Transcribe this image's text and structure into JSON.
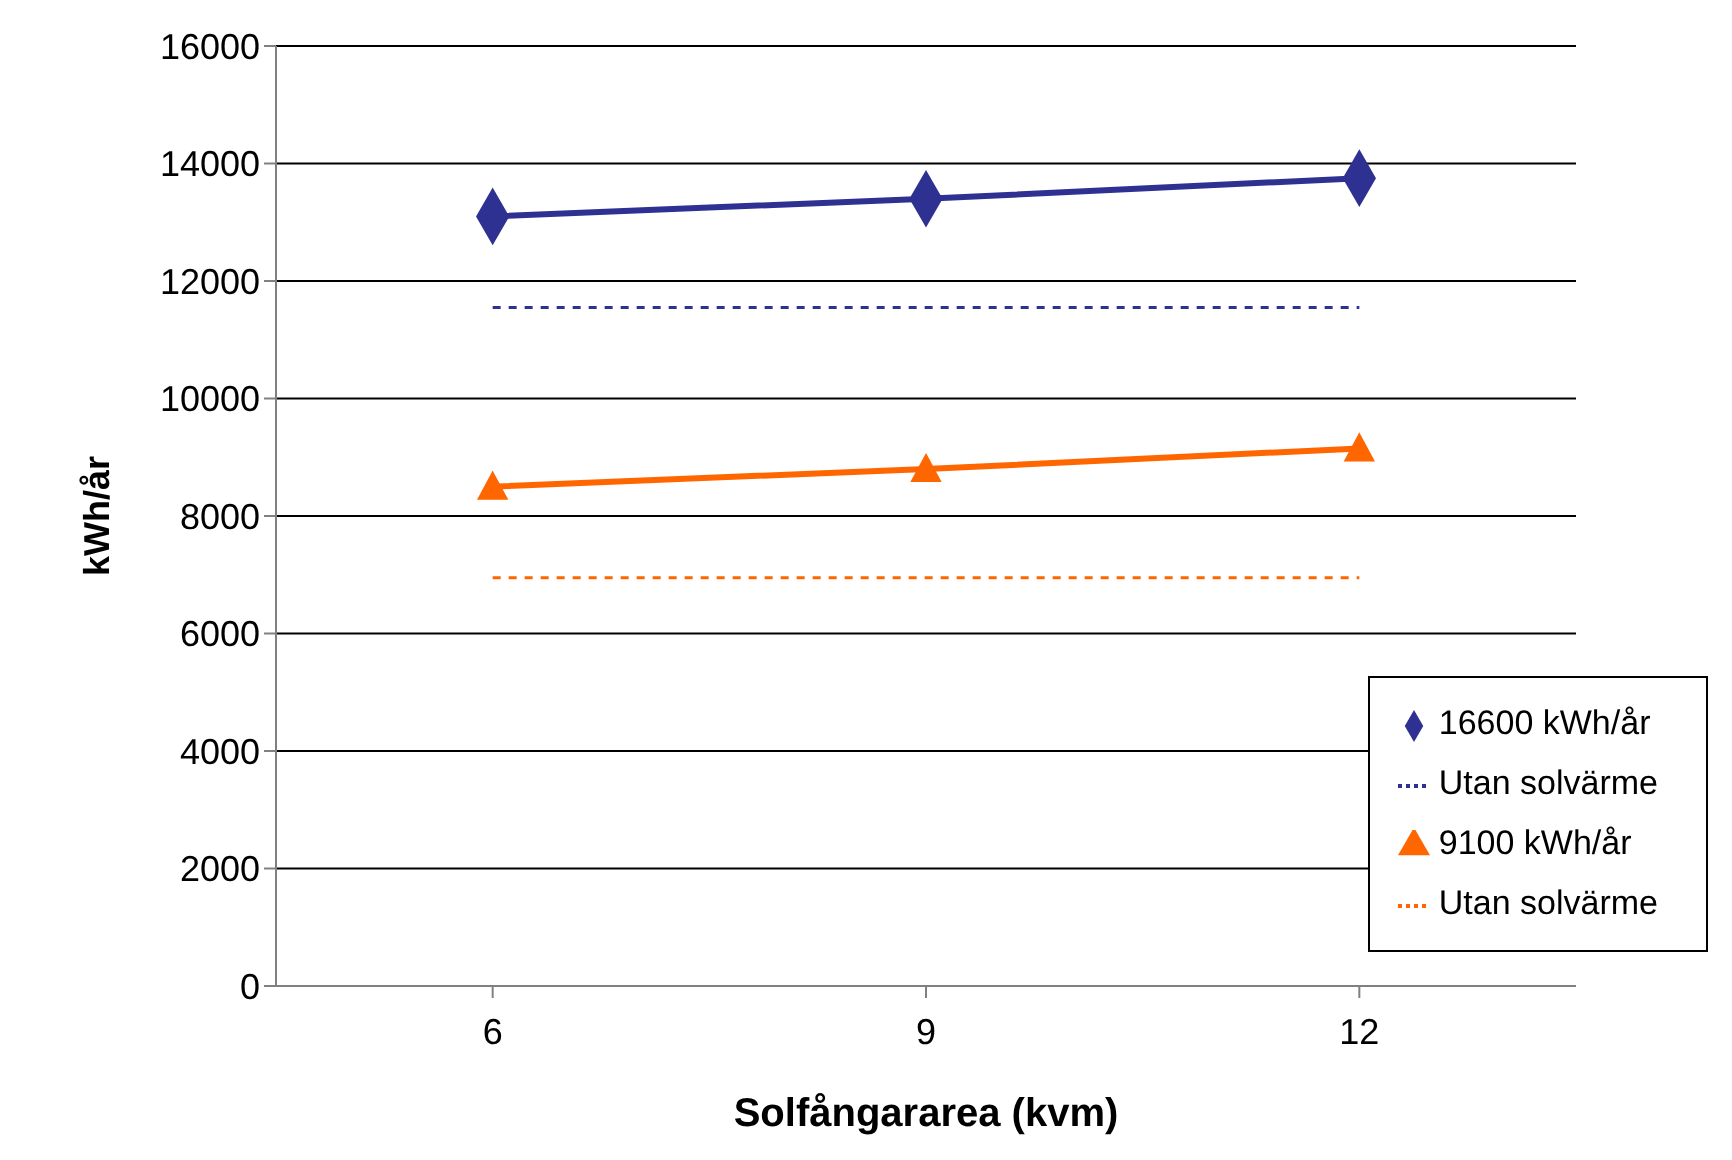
{
  "chart_data": {
    "type": "line",
    "xlabel": "Solfångararea (kvm)",
    "ylabel": "kWh/år",
    "categories": [
      "6",
      "9",
      "12"
    ],
    "series": [
      {
        "name": "16600 kWh/år",
        "color": "#2e3192",
        "values": [
          13100,
          13400,
          13750
        ],
        "marker": "diamond",
        "line_style": "solid"
      },
      {
        "name": "Utan solvärme",
        "color": "#2e3192",
        "values": [
          11550,
          11550,
          11550
        ],
        "marker": "none",
        "line_style": "dashed"
      },
      {
        "name": "9100 kWh/år",
        "color": "#ff6600",
        "values": [
          8500,
          8800,
          9150
        ],
        "marker": "triangle",
        "line_style": "solid"
      },
      {
        "name": "Utan solvärme",
        "color": "#ff6600",
        "values": [
          6950,
          6950,
          6950
        ],
        "marker": "none",
        "line_style": "dashed"
      }
    ],
    "ylim": [
      0,
      16000
    ],
    "yticks": [
      0,
      2000,
      4000,
      6000,
      8000,
      10000,
      12000,
      14000,
      16000
    ],
    "grid": "y",
    "legend": "bottom right"
  }
}
